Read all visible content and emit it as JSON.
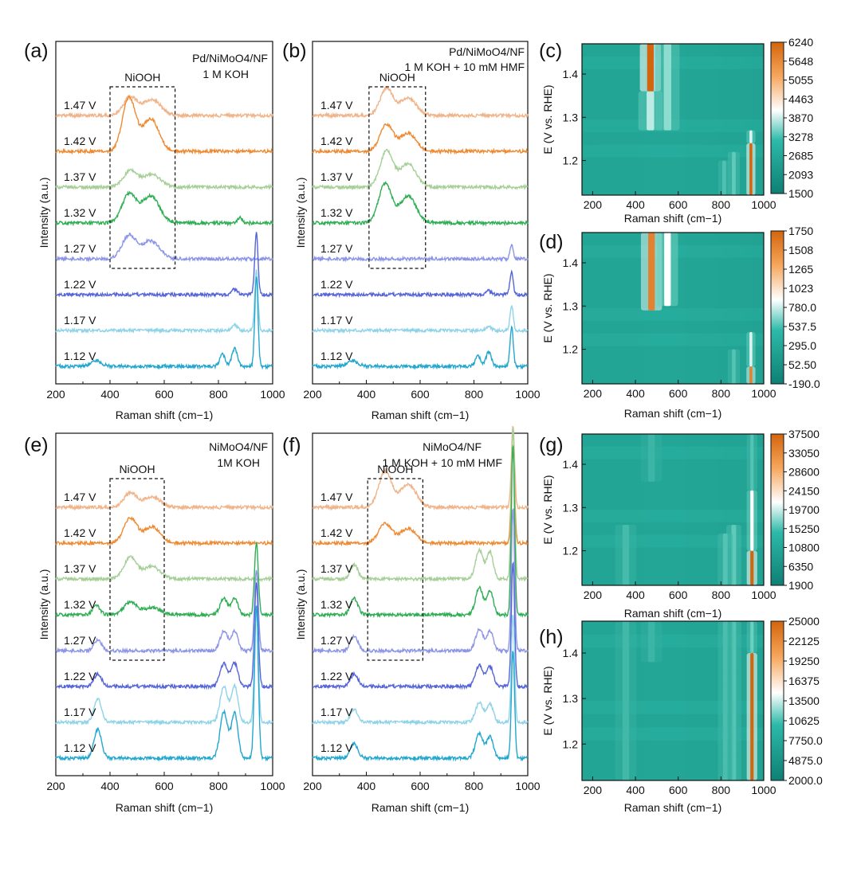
{
  "figure": {
    "panel_letters": [
      "(a)",
      "(b)",
      "(c)",
      "(d)",
      "(e)",
      "(f)",
      "(g)",
      "(h)"
    ]
  },
  "chart_data": [
    {
      "panel": "(a)",
      "type": "line",
      "title_lines": [
        "Pd/NiMoO4/NF",
        "1 M KOH"
      ],
      "xlabel": "Raman shift (cm−1)",
      "ylabel": "Intensity (a.u.)",
      "xlim": [
        200,
        1000
      ],
      "xticks": [
        "200",
        "400",
        "600",
        "800",
        "1000"
      ],
      "box_label": "NiOOH",
      "box_range": [
        400,
        640
      ],
      "series": [
        {
          "name": "1.47 V",
          "color": "#f0b48a",
          "offset": 7,
          "peaks": [
            [
              475,
              1.0,
              26
            ],
            [
              555,
              0.9,
              32
            ]
          ]
        },
        {
          "name": "1.42 V",
          "color": "#ee8a32",
          "offset": 6,
          "peaks": [
            [
              470,
              3.0,
              24
            ],
            [
              550,
              1.8,
              30
            ]
          ]
        },
        {
          "name": "1.37 V",
          "color": "#a6cf98",
          "offset": 5,
          "peaks": [
            [
              475,
              0.9,
              26
            ],
            [
              555,
              0.7,
              32
            ]
          ]
        },
        {
          "name": "1.32 V",
          "color": "#2fae54",
          "offset": 4,
          "peaks": [
            [
              470,
              1.6,
              26
            ],
            [
              550,
              1.5,
              32
            ],
            [
              880,
              0.3,
              8
            ]
          ]
        },
        {
          "name": "1.27 V",
          "color": "#8c95e6",
          "offset": 3,
          "peaks": [
            [
              470,
              1.3,
              26
            ],
            [
              550,
              1.0,
              32
            ]
          ]
        },
        {
          "name": "1.22 V",
          "color": "#5565d8",
          "offset": 2,
          "peaks": [
            [
              860,
              0.3,
              10
            ],
            [
              940,
              3.5,
              6
            ]
          ]
        },
        {
          "name": "1.17 V",
          "color": "#8fd3e8",
          "offset": 1,
          "peaks": [
            [
              860,
              0.3,
              10
            ],
            [
              940,
              3.4,
              6
            ]
          ]
        },
        {
          "name": "1.12 V",
          "color": "#23a7cf",
          "offset": 0,
          "peaks": [
            [
              350,
              0.3,
              20
            ],
            [
              815,
              0.7,
              10
            ],
            [
              860,
              1.0,
              10
            ],
            [
              940,
              5.0,
              6
            ]
          ]
        }
      ]
    },
    {
      "panel": "(b)",
      "type": "line",
      "title_lines": [
        "Pd/NiMoO4/NF",
        "1 M KOH + 10 mM HMF"
      ],
      "xlabel": "Raman shift  (cm−1)",
      "ylabel": "Intensity (a.u.)",
      "xlim": [
        200,
        1000
      ],
      "xticks": [
        "200",
        "400",
        "600",
        "800",
        "1000"
      ],
      "box_label": "NiOOH",
      "box_range": [
        410,
        620
      ],
      "series": [
        {
          "name": "1.47 V",
          "color": "#f0b48a",
          "offset": 7,
          "peaks": [
            [
              475,
              1.5,
              24
            ],
            [
              555,
              1.0,
              30
            ]
          ]
        },
        {
          "name": "1.42 V",
          "color": "#ee8a32",
          "offset": 6,
          "peaks": [
            [
              475,
              1.5,
              24
            ],
            [
              555,
              1.0,
              30
            ]
          ]
        },
        {
          "name": "1.37 V",
          "color": "#a6cf98",
          "offset": 5,
          "peaks": [
            [
              475,
              2.0,
              24
            ],
            [
              555,
              1.3,
              30
            ]
          ]
        },
        {
          "name": "1.32 V",
          "color": "#2fae54",
          "offset": 4,
          "peaks": [
            [
              470,
              2.2,
              24
            ],
            [
              555,
              1.5,
              30
            ]
          ]
        },
        {
          "name": "1.27 V",
          "color": "#8c95e6",
          "offset": 3,
          "peaks": [
            [
              940,
              0.8,
              6
            ]
          ]
        },
        {
          "name": "1.22 V",
          "color": "#5565d8",
          "offset": 2,
          "peaks": [
            [
              855,
              0.2,
              10
            ],
            [
              940,
              1.3,
              6
            ]
          ]
        },
        {
          "name": "1.17 V",
          "color": "#8fd3e8",
          "offset": 1,
          "peaks": [
            [
              855,
              0.2,
              10
            ],
            [
              940,
              1.4,
              6
            ]
          ]
        },
        {
          "name": "1.12 V",
          "color": "#23a7cf",
          "offset": 0,
          "peaks": [
            [
              350,
              0.3,
              20
            ],
            [
              815,
              0.6,
              10
            ],
            [
              855,
              0.8,
              10
            ],
            [
              940,
              2.2,
              6
            ]
          ]
        }
      ]
    },
    {
      "panel": "(c)",
      "type": "heatmap",
      "xlabel": "Raman shift (cm−1)",
      "ylabel": "E (V vs. RHE)",
      "xlim": [
        150,
        1000
      ],
      "ylim": [
        1.12,
        1.47
      ],
      "xticks": [
        "200",
        "400",
        "600",
        "800",
        "1000"
      ],
      "yticks": [
        "1.2",
        "1.3",
        "1.4"
      ],
      "colorbar_ticks": [
        "6240",
        "5648",
        "5055",
        "4463",
        "3870",
        "3278",
        "2685",
        "2093",
        "1500"
      ],
      "features": [
        {
          "x": 470,
          "y0": 1.36,
          "y1": 1.47,
          "w": 14,
          "level": 1.0
        },
        {
          "x": 470,
          "y0": 1.27,
          "y1": 1.36,
          "w": 16,
          "level": 0.45
        },
        {
          "x": 550,
          "y0": 1.27,
          "y1": 1.47,
          "w": 16,
          "level": 0.38
        },
        {
          "x": 940,
          "y0": 1.12,
          "y1": 1.24,
          "w": 6,
          "level": 1.0
        },
        {
          "x": 940,
          "y0": 1.24,
          "y1": 1.27,
          "w": 6,
          "level": 0.5
        },
        {
          "x": 860,
          "y0": 1.12,
          "y1": 1.22,
          "w": 8,
          "level": 0.25
        },
        {
          "x": 815,
          "y0": 1.12,
          "y1": 1.2,
          "w": 8,
          "level": 0.18
        }
      ]
    },
    {
      "panel": "(d)",
      "type": "heatmap",
      "xlabel": "Raman shift (cm−1)",
      "ylabel": "E (V vs. RHE)",
      "xlim": [
        150,
        1000
      ],
      "ylim": [
        1.12,
        1.47
      ],
      "xticks": [
        "200",
        "400",
        "600",
        "800",
        "1000"
      ],
      "yticks": [
        "1.2",
        "1.3",
        "1.4"
      ],
      "colorbar_ticks": [
        "1750",
        "1508",
        "1265",
        "1023",
        "780.0",
        "537.5",
        "295.0",
        "52.50",
        "-190.0"
      ],
      "features": [
        {
          "x": 475,
          "y0": 1.29,
          "y1": 1.47,
          "w": 14,
          "level": 0.9
        },
        {
          "x": 550,
          "y0": 1.3,
          "y1": 1.47,
          "w": 14,
          "level": 0.55
        },
        {
          "x": 940,
          "y0": 1.12,
          "y1": 1.16,
          "w": 6,
          "level": 0.9
        },
        {
          "x": 940,
          "y0": 1.16,
          "y1": 1.24,
          "w": 6,
          "level": 0.5
        },
        {
          "x": 860,
          "y0": 1.12,
          "y1": 1.2,
          "w": 8,
          "level": 0.2
        }
      ]
    },
    {
      "panel": "(e)",
      "type": "line",
      "title_lines": [
        "NiMoO4/NF",
        "1M KOH"
      ],
      "xlabel": "Raman shift (cm−1)",
      "ylabel": "Intensity (a.u.)",
      "xlim": [
        200,
        1000
      ],
      "xticks": [
        "200",
        "400",
        "600",
        "800",
        "1000"
      ],
      "box_label": "NiOOH",
      "box_range": [
        400,
        600
      ],
      "series": [
        {
          "name": "1.47 V",
          "color": "#f0b48a",
          "offset": 7,
          "peaks": [
            [
              475,
              0.8,
              24
            ],
            [
              555,
              0.6,
              30
            ]
          ]
        },
        {
          "name": "1.42 V",
          "color": "#ee8a32",
          "offset": 6,
          "peaks": [
            [
              475,
              1.4,
              24
            ],
            [
              555,
              0.9,
              30
            ]
          ]
        },
        {
          "name": "1.37 V",
          "color": "#a6cf98",
          "offset": 5,
          "peaks": [
            [
              475,
              1.2,
              24
            ],
            [
              555,
              0.7,
              30
            ]
          ]
        },
        {
          "name": "1.32 V",
          "color": "#2fae54",
          "offset": 4,
          "peaks": [
            [
              350,
              0.5,
              14
            ],
            [
              475,
              0.7,
              24
            ],
            [
              555,
              0.4,
              30
            ],
            [
              820,
              0.9,
              14
            ],
            [
              860,
              0.9,
              12
            ],
            [
              940,
              4.0,
              7
            ]
          ]
        },
        {
          "name": "1.27 V",
          "color": "#8c95e6",
          "offset": 3,
          "peaks": [
            [
              355,
              0.6,
              14
            ],
            [
              820,
              1.1,
              14
            ],
            [
              860,
              1.1,
              12
            ],
            [
              940,
              4.5,
              7
            ]
          ]
        },
        {
          "name": "1.22 V",
          "color": "#5565d8",
          "offset": 2,
          "peaks": [
            [
              355,
              0.7,
              14
            ],
            [
              820,
              1.3,
              14
            ],
            [
              860,
              1.3,
              12
            ],
            [
              940,
              5.8,
              7
            ]
          ]
        },
        {
          "name": "1.17 V",
          "color": "#8fd3e8",
          "offset": 1,
          "peaks": [
            [
              355,
              1.3,
              14
            ],
            [
              820,
              2.0,
              14
            ],
            [
              860,
              2.0,
              12
            ],
            [
              940,
              6.5,
              7
            ]
          ]
        },
        {
          "name": "1.12 V",
          "color": "#23a7cf",
          "offset": 0,
          "peaks": [
            [
              355,
              1.6,
              14
            ],
            [
              820,
              2.6,
              14
            ],
            [
              860,
              2.5,
              12
            ],
            [
              940,
              8.5,
              7
            ]
          ]
        }
      ]
    },
    {
      "panel": "(f)",
      "type": "line",
      "title_lines": [
        "NiMoO4/NF",
        "1 M KOH + 10 mM HMF"
      ],
      "xlabel": "Raman shift (cm−1)",
      "ylabel": "Intensity (a.u.)",
      "xlim": [
        200,
        1000
      ],
      "xticks": [
        "200",
        "400",
        "600",
        "800",
        "1000"
      ],
      "box_label": "NiOOH",
      "box_range": [
        405,
        610
      ],
      "series": [
        {
          "name": "1.47 V",
          "color": "#f0b48a",
          "offset": 7,
          "peaks": [
            [
              470,
              2.0,
              24
            ],
            [
              555,
              1.3,
              30
            ],
            [
              945,
              4.5,
              6
            ]
          ]
        },
        {
          "name": "1.42 V",
          "color": "#ee8a32",
          "offset": 6,
          "peaks": [
            [
              470,
              1.1,
              24
            ],
            [
              555,
              0.8,
              30
            ],
            [
              945,
              5.5,
              6
            ]
          ]
        },
        {
          "name": "1.37 V",
          "color": "#a6cf98",
          "offset": 5,
          "peaks": [
            [
              355,
              0.8,
              14
            ],
            [
              820,
              1.6,
              14
            ],
            [
              860,
              1.5,
              12
            ],
            [
              945,
              8.5,
              6
            ]
          ]
        },
        {
          "name": "1.32 V",
          "color": "#2fae54",
          "offset": 4,
          "peaks": [
            [
              355,
              0.9,
              14
            ],
            [
              820,
              1.5,
              14
            ],
            [
              860,
              1.3,
              12
            ],
            [
              945,
              9.5,
              6
            ]
          ]
        },
        {
          "name": "1.27 V",
          "color": "#8c95e6",
          "offset": 3,
          "peaks": [
            [
              355,
              0.8,
              14
            ],
            [
              820,
              1.2,
              14
            ],
            [
              860,
              1.1,
              12
            ],
            [
              945,
              8.0,
              6
            ]
          ]
        },
        {
          "name": "1.22 V",
          "color": "#5565d8",
          "offset": 2,
          "peaks": [
            [
              355,
              0.7,
              14
            ],
            [
              820,
              1.2,
              14
            ],
            [
              860,
              1.1,
              12
            ],
            [
              945,
              7.0,
              6
            ]
          ]
        },
        {
          "name": "1.17 V",
          "color": "#8fd3e8",
          "offset": 1,
          "peaks": [
            [
              355,
              0.7,
              14
            ],
            [
              820,
              1.1,
              14
            ],
            [
              860,
              1.0,
              12
            ],
            [
              945,
              6.0,
              6
            ]
          ]
        },
        {
          "name": "1.12 V",
          "color": "#23a7cf",
          "offset": 0,
          "peaks": [
            [
              355,
              0.8,
              14
            ],
            [
              820,
              1.4,
              14
            ],
            [
              860,
              1.2,
              12
            ],
            [
              945,
              6.0,
              6
            ]
          ]
        }
      ]
    },
    {
      "panel": "(g)",
      "type": "heatmap",
      "xlabel": "Raman shift (cm−1)",
      "ylabel": "E (V vs. RHE)",
      "xlim": [
        150,
        1000
      ],
      "ylim": [
        1.12,
        1.47
      ],
      "xticks": [
        "200",
        "400",
        "600",
        "800",
        "1000"
      ],
      "yticks": [
        "1.2",
        "1.3",
        "1.4"
      ],
      "colorbar_ticks": [
        "37500",
        "33050",
        "28600",
        "24150",
        "19700",
        "15250",
        "10800",
        "6350",
        "1900"
      ],
      "features": [
        {
          "x": 945,
          "y0": 1.12,
          "y1": 1.2,
          "w": 7,
          "level": 1.0
        },
        {
          "x": 945,
          "y0": 1.2,
          "y1": 1.34,
          "w": 7,
          "level": 0.55
        },
        {
          "x": 945,
          "y0": 1.34,
          "y1": 1.47,
          "w": 7,
          "level": 0.2
        },
        {
          "x": 860,
          "y0": 1.12,
          "y1": 1.26,
          "w": 10,
          "level": 0.25
        },
        {
          "x": 820,
          "y0": 1.12,
          "y1": 1.24,
          "w": 10,
          "level": 0.2
        },
        {
          "x": 355,
          "y0": 1.12,
          "y1": 1.26,
          "w": 14,
          "level": 0.14
        },
        {
          "x": 475,
          "y0": 1.36,
          "y1": 1.47,
          "w": 14,
          "level": 0.1
        }
      ]
    },
    {
      "panel": "(h)",
      "type": "heatmap",
      "xlabel": "Raman shift (cm−1)",
      "ylabel": "E (V vs. RHE)",
      "xlim": [
        150,
        1000
      ],
      "ylim": [
        1.12,
        1.47
      ],
      "xticks": [
        "200",
        "400",
        "600",
        "800",
        "1000"
      ],
      "yticks": [
        "1.2",
        "1.3",
        "1.4"
      ],
      "colorbar_ticks": [
        "25000",
        "22125",
        "19250",
        "16375",
        "13500",
        "10625",
        "7750.0",
        "4875.0",
        "2000.0"
      ],
      "features": [
        {
          "x": 945,
          "y0": 1.12,
          "y1": 1.4,
          "w": 7,
          "level": 1.0
        },
        {
          "x": 945,
          "y0": 1.4,
          "y1": 1.47,
          "w": 7,
          "level": 0.3
        },
        {
          "x": 860,
          "y0": 1.12,
          "y1": 1.47,
          "w": 10,
          "level": 0.2
        },
        {
          "x": 820,
          "y0": 1.12,
          "y1": 1.47,
          "w": 10,
          "level": 0.16
        },
        {
          "x": 355,
          "y0": 1.12,
          "y1": 1.47,
          "w": 14,
          "level": 0.12
        },
        {
          "x": 475,
          "y0": 1.38,
          "y1": 1.47,
          "w": 14,
          "level": 0.1
        }
      ]
    }
  ]
}
